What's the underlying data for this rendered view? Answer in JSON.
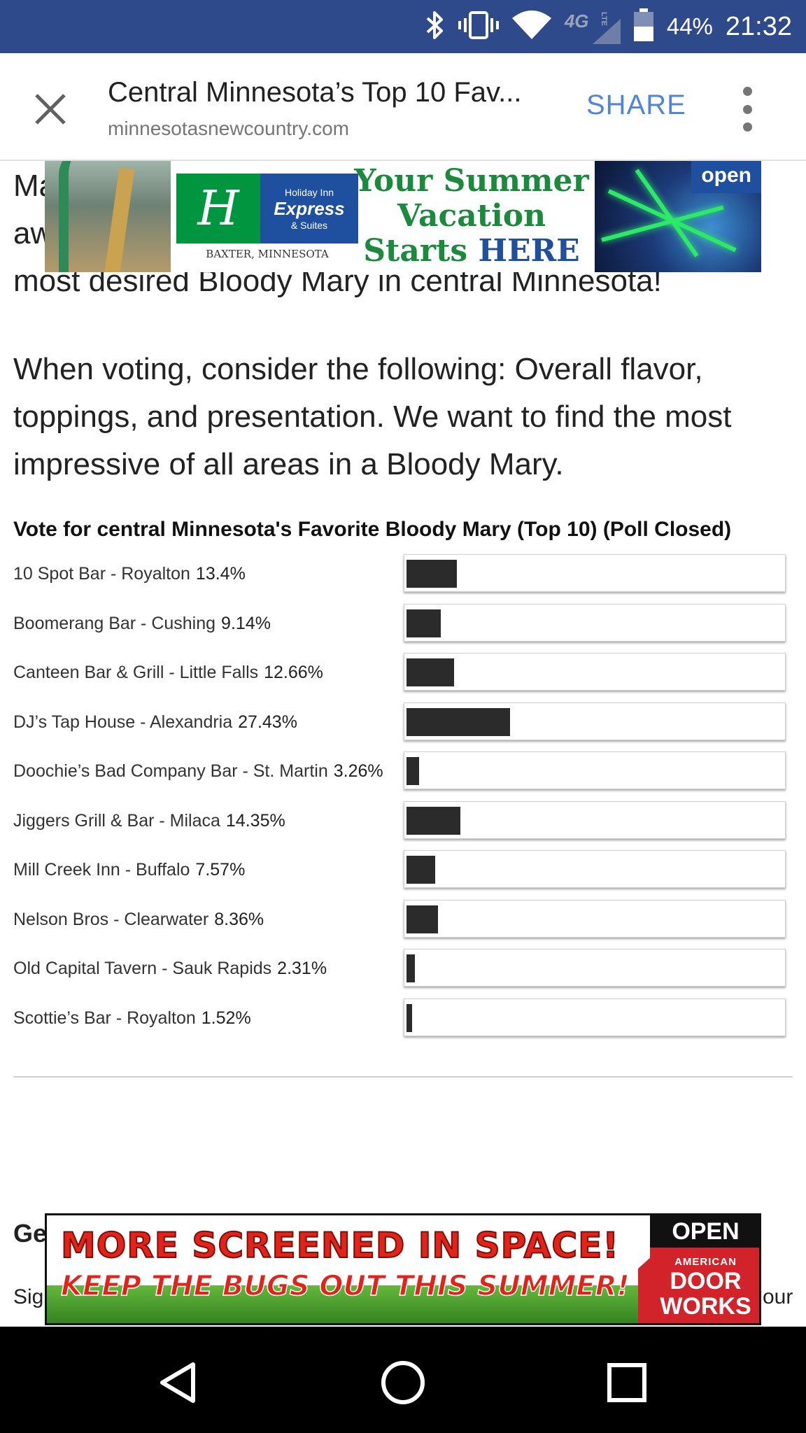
{
  "status_bar": {
    "network": "4G",
    "network_sub": "LTE",
    "battery": "44%",
    "time": "21:32",
    "icons": [
      "bluetooth-icon",
      "vibrate-icon",
      "wifi-icon",
      "signal-icon",
      "battery-icon"
    ]
  },
  "toolbar": {
    "title": "Central Minnesota’s Top 10 Fav...",
    "url": "minnesotasnewcountry.com",
    "share_label": "SHARE",
    "close_icon": "close-icon",
    "more_icon": "more-vert-icon"
  },
  "article": {
    "para1_line1": "Ma",
    "para1_line2": "aw",
    "para1_line3": "most desired Bloody Mary in central Minnesota!",
    "para2": "When voting, consider the following: Overall flavor, toppings, and presentation. We want to find the most impressive of all areas in a Bloody Mary.",
    "heading_fragment": "Ge",
    "text_fragment_left": "Sig",
    "text_fragment_right": "our"
  },
  "poll": {
    "title": "Vote for central Minnesota's Favorite Bloody Mary (Top 10) (Poll Closed)",
    "bar_color": "#2b2b2b",
    "options": [
      {
        "label": "10 Spot Bar - Royalton",
        "percent_label": "13.4%",
        "value": 13.4
      },
      {
        "label": "Boomerang Bar - Cushing",
        "percent_label": "9.14%",
        "value": 9.14
      },
      {
        "label": "Canteen Bar & Grill - Little Falls",
        "percent_label": "12.66%",
        "value": 12.66
      },
      {
        "label": "DJ’s Tap House - Alexandria",
        "percent_label": "27.43%",
        "value": 27.43
      },
      {
        "label": "Doochie’s Bad Company Bar - St. Martin",
        "percent_label": "3.26%",
        "value": 3.26
      },
      {
        "label": "Jiggers Grill & Bar - Milaca",
        "percent_label": "14.35%",
        "value": 14.35
      },
      {
        "label": "Mill Creek Inn - Buffalo",
        "percent_label": "7.57%",
        "value": 7.57
      },
      {
        "label": "Nelson Bros - Clearwater",
        "percent_label": "8.36%",
        "value": 8.36
      },
      {
        "label": "Old Capital Tavern - Sauk Rapids",
        "percent_label": "2.31%",
        "value": 2.31
      },
      {
        "label": "Scottie’s Bar - Royalton",
        "percent_label": "1.52%",
        "value": 1.52
      }
    ]
  },
  "ads": {
    "top": {
      "brand_line1": "Holiday Inn",
      "brand_line2": "Express",
      "brand_line3": "& Suites",
      "location": "BAXTER, MINNESOTA",
      "headline_1": "Your Summer",
      "headline_2": "Vacation",
      "headline_3a": "Starts ",
      "headline_3b": "HERE",
      "open_label": "open"
    },
    "bottom": {
      "line1": "MORE SCREENED IN SPACE!",
      "line2": "KEEP THE BUGS OUT THIS SUMMER!",
      "open_label": "OPEN",
      "brand_small": "AMERICAN",
      "brand_big_1": "DOOR",
      "brand_big_2": "WORKS"
    }
  },
  "nav_bar": {
    "back_icon": "back-triangle-icon",
    "home_icon": "home-circle-icon",
    "recents_icon": "recents-square-icon"
  }
}
